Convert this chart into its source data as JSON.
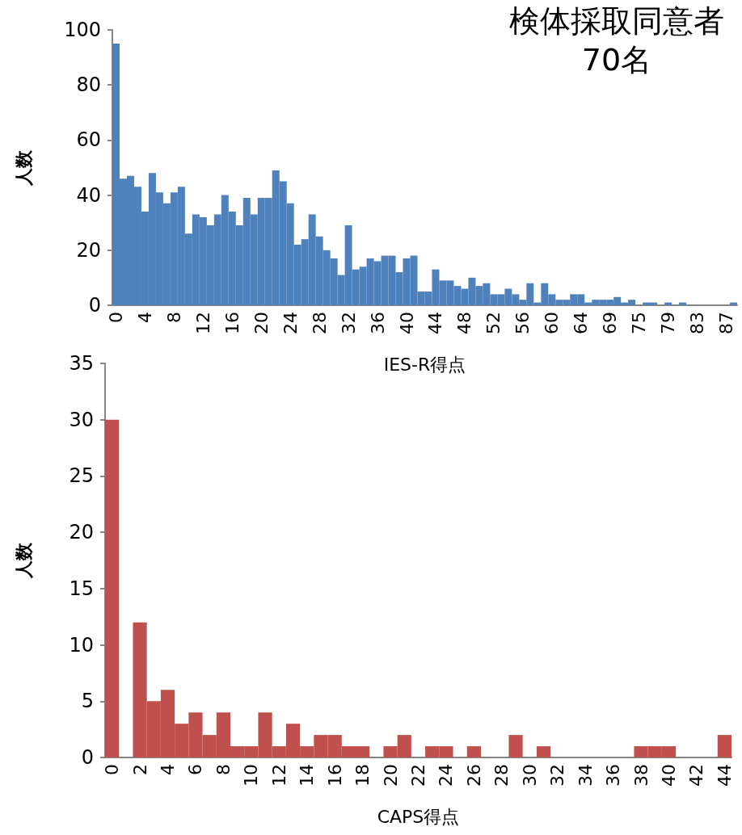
{
  "chart_data": [
    {
      "type": "bar",
      "annotations": [
        "検体採取同意者\n70名"
      ],
      "xlabel": "IES-R得点",
      "ylabel": "人数",
      "categories": [
        "0",
        null,
        null,
        null,
        "4",
        null,
        null,
        null,
        "8",
        null,
        null,
        null,
        "12",
        null,
        null,
        null,
        "16",
        null,
        null,
        null,
        "20",
        null,
        null,
        null,
        "24",
        null,
        null,
        null,
        "28",
        null,
        null,
        null,
        "32",
        null,
        null,
        null,
        "36",
        null,
        null,
        null,
        "40",
        null,
        null,
        null,
        "44",
        null,
        null,
        null,
        "48",
        null,
        null,
        null,
        "52",
        null,
        null,
        null,
        "56",
        null,
        null,
        null,
        "60",
        null,
        null,
        null,
        "64",
        null,
        null,
        null,
        "69",
        null,
        null,
        null,
        "75",
        null,
        null,
        null,
        "79",
        null,
        null,
        null,
        "83",
        null,
        null,
        null,
        "87",
        null
      ],
      "series": [
        {
          "color": "#4f81bd",
          "values": [
            95,
            46,
            47,
            43,
            34,
            48,
            41,
            37,
            41,
            43,
            26,
            33,
            32,
            29,
            33,
            40,
            34,
            29,
            39,
            33,
            39,
            39,
            49,
            45,
            37,
            22,
            24,
            33,
            25,
            20,
            17,
            11,
            29,
            13,
            14,
            17,
            16,
            18,
            18,
            12,
            17,
            18,
            5,
            5,
            13,
            9,
            9,
            7,
            6,
            10,
            7,
            8,
            4,
            4,
            6,
            4,
            2,
            8,
            1,
            8,
            4,
            2,
            2,
            4,
            4,
            1,
            2,
            2,
            2,
            3,
            1,
            2,
            0,
            1,
            1,
            0,
            1,
            0,
            1,
            0,
            0,
            0,
            0,
            0,
            0,
            1
          ]
        }
      ],
      "ylim": [
        0,
        100
      ],
      "yticks": [
        0,
        20,
        40,
        60,
        80,
        100
      ],
      "grid": false
    },
    {
      "type": "bar",
      "xlabel": "CAPS得点",
      "ylabel": "人数",
      "categories": [
        "0",
        null,
        "2",
        null,
        "4",
        null,
        "6",
        null,
        "8",
        null,
        "10",
        null,
        "12",
        null,
        "14",
        null,
        "16",
        null,
        "18",
        null,
        "20",
        null,
        "22",
        null,
        "24",
        null,
        "26",
        null,
        "28",
        null,
        "30",
        null,
        "32",
        null,
        "34",
        null,
        "36",
        null,
        "38",
        null,
        "40",
        null,
        "42",
        null,
        "44"
      ],
      "series": [
        {
          "color": "#c0504d",
          "values": [
            30,
            0,
            12,
            5,
            6,
            3,
            4,
            2,
            4,
            1,
            1,
            4,
            1,
            3,
            1,
            2,
            2,
            1,
            1,
            0,
            1,
            2,
            0,
            1,
            1,
            0,
            1,
            0,
            0,
            2,
            0,
            1,
            0,
            0,
            0,
            0,
            0,
            0,
            1,
            1,
            1,
            0,
            0,
            0,
            2
          ]
        }
      ],
      "ylim": [
        0,
        35
      ],
      "yticks": [
        0,
        5,
        10,
        15,
        20,
        25,
        30,
        35
      ],
      "grid": false
    }
  ]
}
